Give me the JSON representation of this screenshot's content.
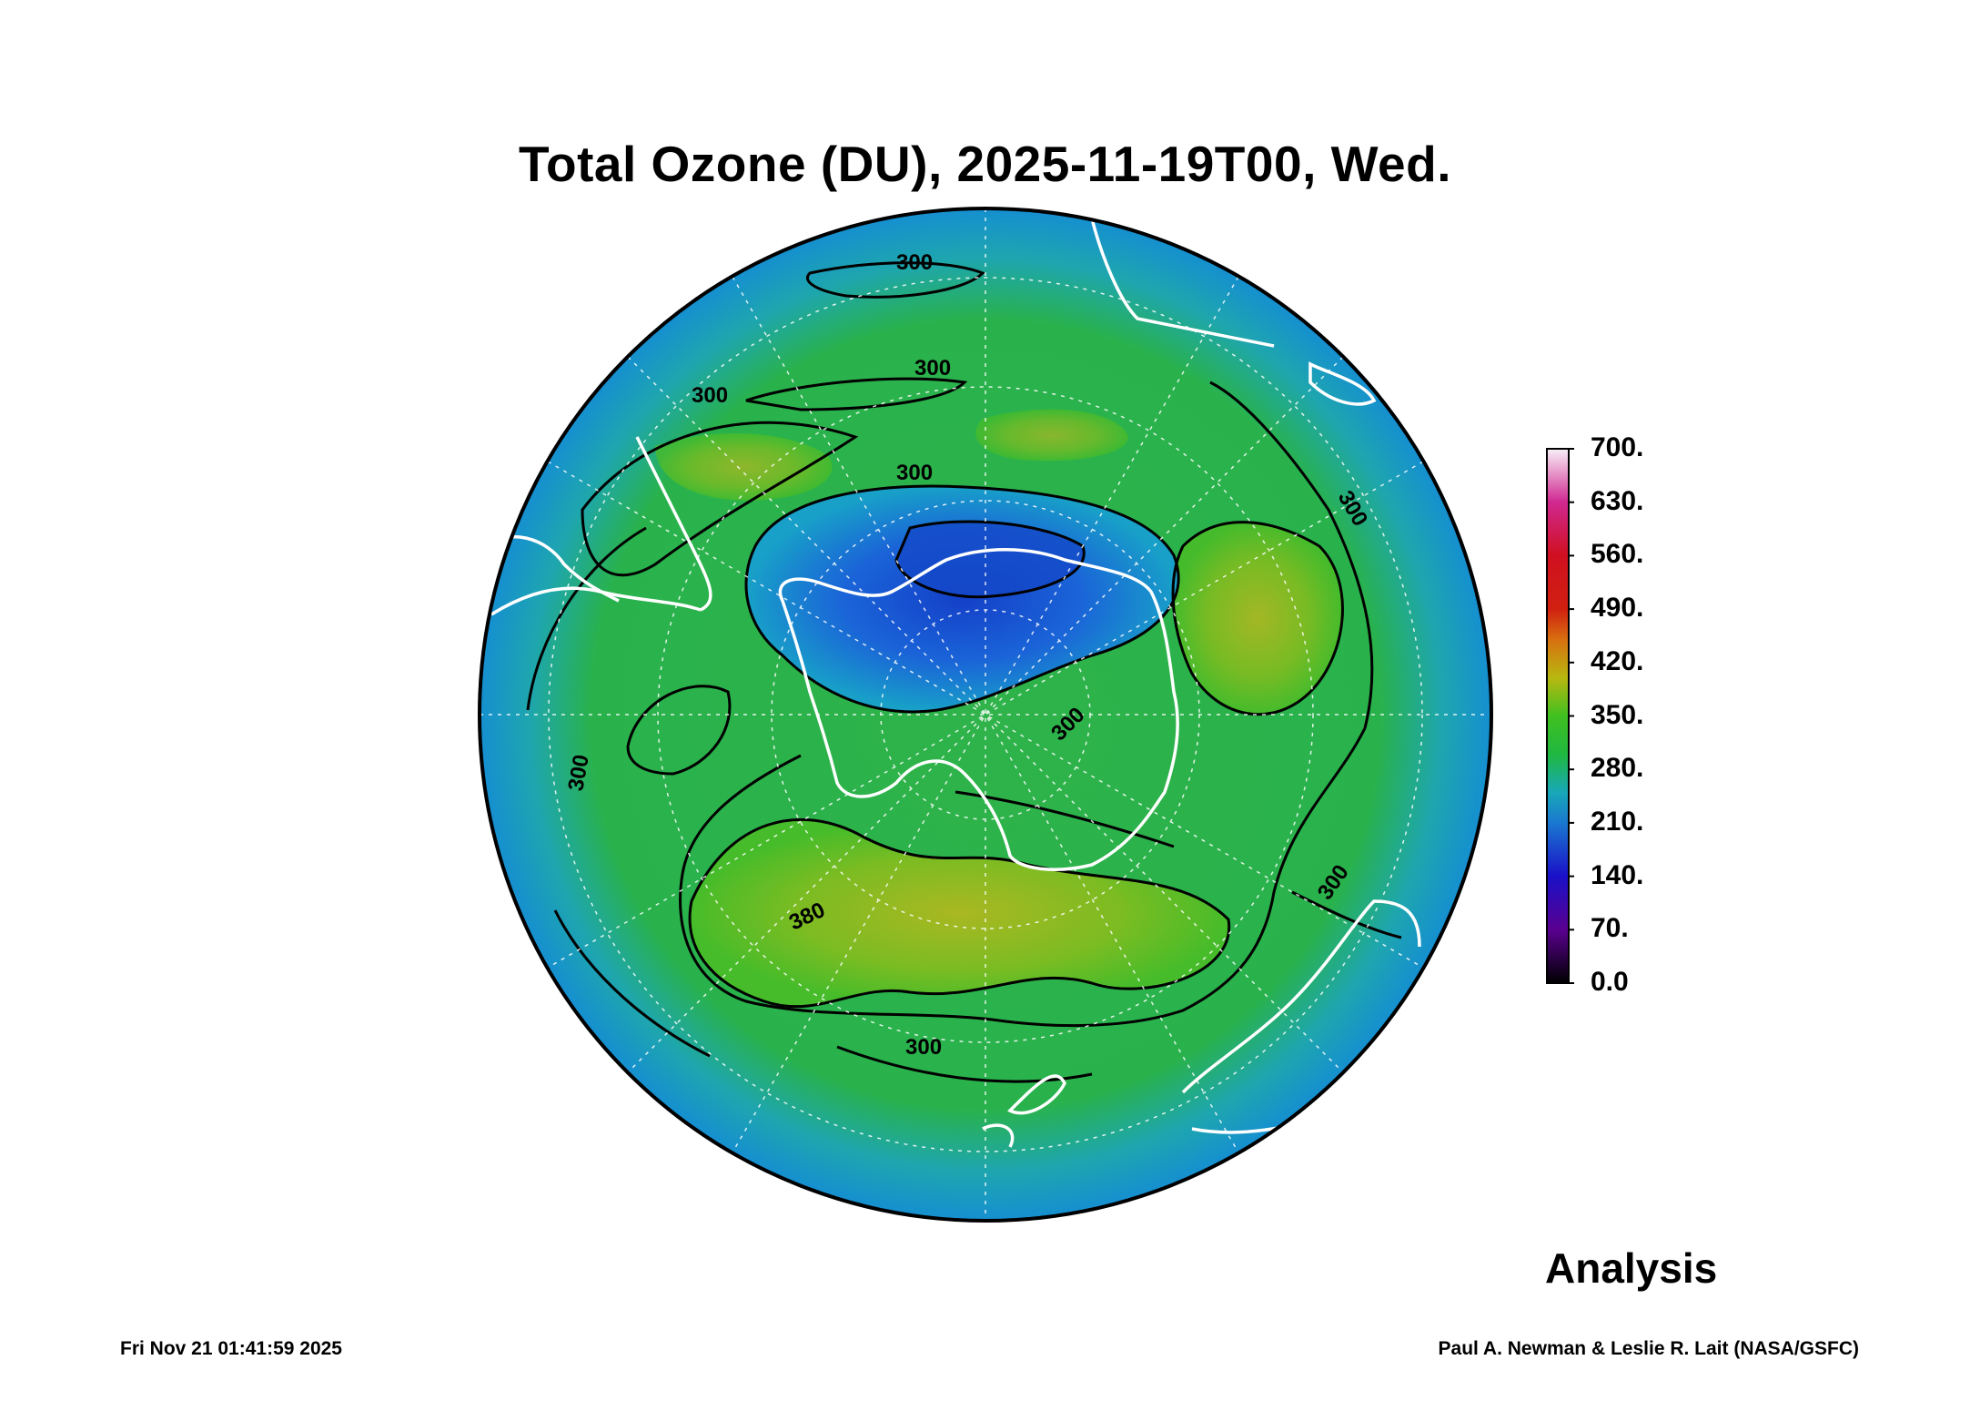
{
  "title": "Total Ozone (DU), 2025-11-19T00, Wed.",
  "product_label": "Analysis",
  "footer": {
    "timestamp": "Fri Nov 21 01:41:59 2025",
    "credit": "Paul A. Newman & Leslie R. Lait (NASA/GSFC)"
  },
  "colorbar": {
    "unit": "DU",
    "labels": [
      "700.",
      "630.",
      "560.",
      "490.",
      "420.",
      "350.",
      "280.",
      "210.",
      "140.",
      "70.",
      "0.0"
    ],
    "stops": [
      {
        "value": 0,
        "color": "#000000"
      },
      {
        "value": 70,
        "color": "#5a0090"
      },
      {
        "value": 140,
        "color": "#1a10c8"
      },
      {
        "value": 210,
        "color": "#1a78d0"
      },
      {
        "value": 250,
        "color": "#18a8b8"
      },
      {
        "value": 300,
        "color": "#20b840"
      },
      {
        "value": 350,
        "color": "#40c020"
      },
      {
        "value": 400,
        "color": "#b8b810"
      },
      {
        "value": 450,
        "color": "#d87010"
      },
      {
        "value": 490,
        "color": "#d02010"
      },
      {
        "value": 560,
        "color": "#d01020"
      },
      {
        "value": 630,
        "color": "#d02890"
      },
      {
        "value": 700,
        "color": "#f8f0f8"
      }
    ]
  },
  "contour_labels": [
    "300",
    "300",
    "300",
    "300",
    "300",
    "300",
    "300",
    "300",
    "300",
    "380"
  ],
  "map": {
    "projection": "south polar stereographic",
    "colors": {
      "low_ozone": "#1a5ad8",
      "mid_ozone": "#18a8c0",
      "typical": "#30b840",
      "high_ozone": "#98b820",
      "coastline": "#ffffff",
      "contour": "#000000"
    }
  }
}
